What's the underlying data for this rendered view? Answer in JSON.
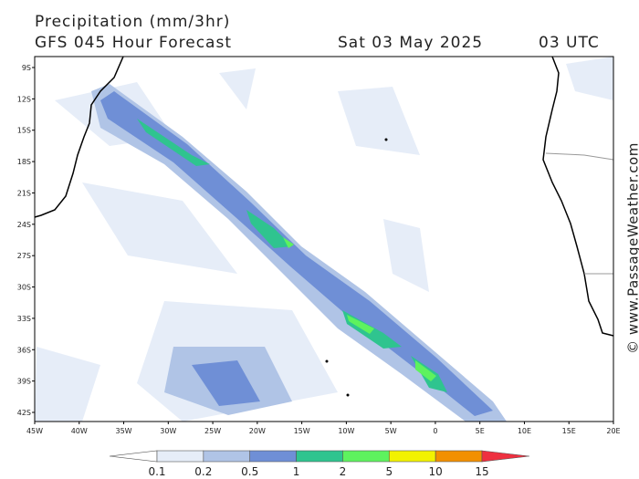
{
  "header": {
    "title": "Precipitation (mm/3hr)",
    "model": "GFS 045 Hour Forecast",
    "date": "Sat 03 May 2025",
    "time": "03 UTC"
  },
  "map": {
    "lat_labels": [
      "9S",
      "12S",
      "15S",
      "18S",
      "21S",
      "24S",
      "27S",
      "30S",
      "33S",
      "36S",
      "39S",
      "42S"
    ],
    "lon_labels": [
      "45W",
      "40W",
      "35W",
      "30W",
      "25W",
      "20W",
      "15W",
      "10W",
      "5W",
      "0",
      "5E",
      "10E",
      "15E",
      "20E"
    ],
    "credit": "© www.PassageWeather.com"
  },
  "legend": {
    "labels": [
      "0.1",
      "0.2",
      "0.5",
      "1",
      "2",
      "5",
      "10",
      "15"
    ],
    "colors": [
      "#ffffff",
      "#e6edf8",
      "#b0c4e6",
      "#6f8fd6",
      "#2fc48f",
      "#5ef25e",
      "#f2f200",
      "#f29000",
      "#ee3040"
    ]
  }
}
